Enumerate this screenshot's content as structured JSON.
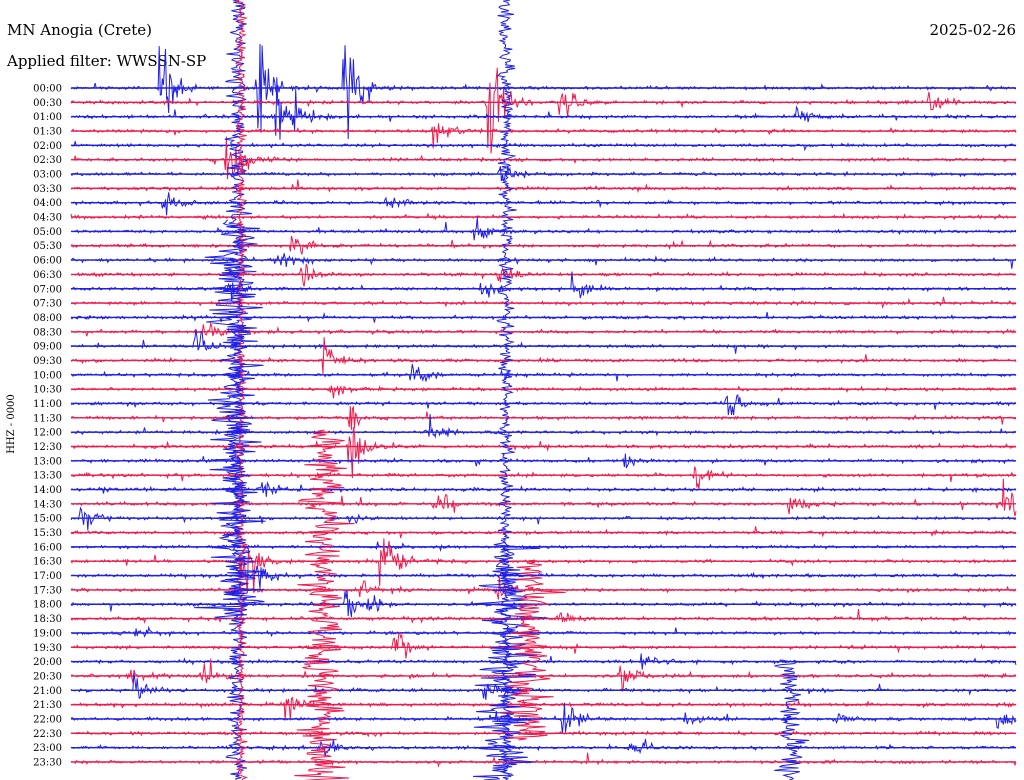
{
  "header": {
    "station": "MN Anogia (Crete)",
    "filter_text": "Applied filter: WWSSN-SP",
    "date": "2025-02-26"
  },
  "chart_data": {
    "type": "line",
    "title": "MN Anogia (Crete)",
    "subtitle": "Applied filter: WWSSN-SP",
    "date": "2025-02-26",
    "ylabel": "HHZ - 0000",
    "trace_labels": [
      "00:00",
      "00:30",
      "01:00",
      "01:30",
      "02:00",
      "02:30",
      "03:00",
      "03:30",
      "04:00",
      "04:30",
      "05:00",
      "05:30",
      "06:00",
      "06:30",
      "07:00",
      "07:30",
      "08:00",
      "08:30",
      "09:00",
      "09:30",
      "10:00",
      "10:30",
      "11:00",
      "11:30",
      "12:00",
      "12:30",
      "13:00",
      "13:30",
      "14:00",
      "14:30",
      "15:00",
      "15:30",
      "16:00",
      "16:30",
      "17:00",
      "17:30",
      "18:00",
      "18:30",
      "19:00",
      "19:30",
      "20:00",
      "20:30",
      "21:00",
      "21:30",
      "22:00",
      "22:30",
      "23:00",
      "23:30"
    ],
    "trace_minutes": 30,
    "series_colors": [
      "#1f1fe6",
      "#ee1c4e"
    ],
    "grid": false,
    "legend": "none",
    "events": [
      {
        "row": 0,
        "minute": 2.8,
        "amp": 100
      },
      {
        "row": 0,
        "minute": 5.9,
        "amp": 80
      },
      {
        "row": 0,
        "minute": 8.6,
        "amp": 130
      },
      {
        "row": 1,
        "minute": 13.2,
        "amp": 140
      },
      {
        "row": 1,
        "minute": 15.5,
        "amp": 35
      },
      {
        "row": 1,
        "minute": 27.2,
        "amp": 30
      },
      {
        "row": 2,
        "minute": 6.5,
        "amp": 85
      },
      {
        "row": 2,
        "minute": 7.0,
        "amp": 30
      },
      {
        "row": 2,
        "minute": 23.0,
        "amp": 28
      },
      {
        "row": 3,
        "minute": 11.5,
        "amp": 50
      },
      {
        "row": 5,
        "minute": 4.9,
        "amp": 60
      },
      {
        "row": 5,
        "minute": 5.1,
        "amp": 35
      },
      {
        "row": 6,
        "minute": 13.6,
        "amp": 30
      },
      {
        "row": 8,
        "minute": 10.0,
        "amp": 25
      },
      {
        "row": 8,
        "minute": 2.9,
        "amp": 20
      },
      {
        "row": 10,
        "minute": 12.8,
        "amp": 25
      },
      {
        "row": 11,
        "minute": 7.0,
        "amp": 30
      },
      {
        "row": 12,
        "minute": 6.5,
        "amp": 25
      },
      {
        "row": 13,
        "minute": 7.3,
        "amp": 30
      },
      {
        "row": 13,
        "minute": 13.5,
        "amp": 35
      },
      {
        "row": 14,
        "minute": 5.0,
        "amp": 30
      },
      {
        "row": 14,
        "minute": 13.0,
        "amp": 30
      },
      {
        "row": 14,
        "minute": 15.9,
        "amp": 30
      },
      {
        "row": 17,
        "minute": 4.2,
        "amp": 25
      },
      {
        "row": 18,
        "minute": 3.9,
        "amp": 30
      },
      {
        "row": 19,
        "minute": 8.0,
        "amp": 35
      },
      {
        "row": 20,
        "minute": 10.8,
        "amp": 30
      },
      {
        "row": 21,
        "minute": 8.2,
        "amp": 20
      },
      {
        "row": 22,
        "minute": 20.8,
        "amp": 40
      },
      {
        "row": 23,
        "minute": 8.8,
        "amp": 35
      },
      {
        "row": 24,
        "minute": 11.3,
        "amp": 30
      },
      {
        "row": 25,
        "minute": 8.8,
        "amp": 65
      },
      {
        "row": 26,
        "minute": 17.5,
        "amp": 20
      },
      {
        "row": 27,
        "minute": 19.8,
        "amp": 30
      },
      {
        "row": 28,
        "minute": 6.0,
        "amp": 35
      },
      {
        "row": 29,
        "minute": 11.5,
        "amp": 35
      },
      {
        "row": 29,
        "minute": 22.8,
        "amp": 30
      },
      {
        "row": 29,
        "minute": 29.6,
        "amp": 50
      },
      {
        "row": 30,
        "minute": 8.8,
        "amp": 20
      },
      {
        "row": 30,
        "minute": 0.3,
        "amp": 30
      },
      {
        "row": 33,
        "minute": 5.4,
        "amp": 90
      },
      {
        "row": 33,
        "minute": 9.8,
        "amp": 110
      },
      {
        "row": 34,
        "minute": 5.8,
        "amp": 30
      },
      {
        "row": 35,
        "minute": 9.2,
        "amp": 30
      },
      {
        "row": 35,
        "minute": 13.5,
        "amp": 30
      },
      {
        "row": 36,
        "minute": 8.7,
        "amp": 30
      },
      {
        "row": 36,
        "minute": 9.4,
        "amp": 30
      },
      {
        "row": 37,
        "minute": 15.4,
        "amp": 25
      },
      {
        "row": 38,
        "minute": 2.0,
        "amp": 20
      },
      {
        "row": 39,
        "minute": 10.2,
        "amp": 45
      },
      {
        "row": 40,
        "minute": 18.1,
        "amp": 25
      },
      {
        "row": 41,
        "minute": 1.8,
        "amp": 30
      },
      {
        "row": 41,
        "minute": 4.1,
        "amp": 35
      },
      {
        "row": 41,
        "minute": 17.4,
        "amp": 30
      },
      {
        "row": 42,
        "minute": 2.0,
        "amp": 30
      },
      {
        "row": 42,
        "minute": 13.1,
        "amp": 30
      },
      {
        "row": 43,
        "minute": 6.8,
        "amp": 35
      },
      {
        "row": 44,
        "minute": 15.6,
        "amp": 45
      },
      {
        "row": 44,
        "minute": 19.5,
        "amp": 20
      },
      {
        "row": 44,
        "minute": 24.2,
        "amp": 20
      },
      {
        "row": 44,
        "minute": 29.4,
        "amp": 25
      },
      {
        "row": 46,
        "minute": 7.9,
        "amp": 25
      },
      {
        "row": 46,
        "minute": 17.7,
        "amp": 25
      }
    ]
  }
}
